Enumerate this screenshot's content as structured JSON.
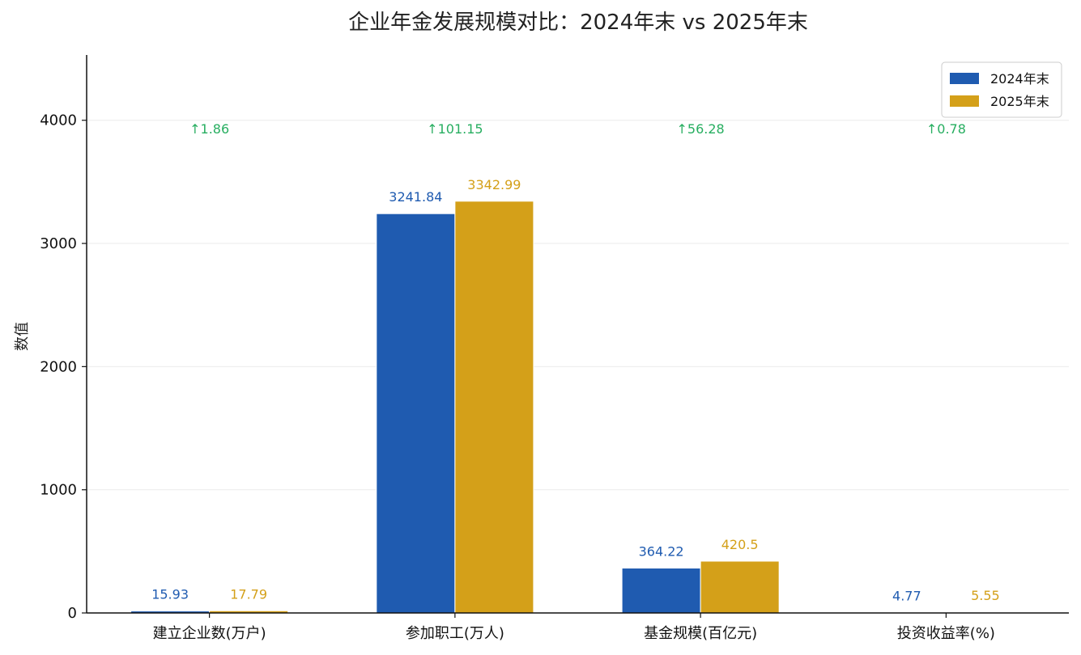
{
  "chart_data": {
    "type": "bar",
    "title": "企业年金发展规模对比：2024年末 vs 2025年末",
    "xlabel": "",
    "ylabel": "数值",
    "ylim": [
      0,
      4530
    ],
    "yticks": [
      "0",
      "1000",
      "2000",
      "3000",
      "4000"
    ],
    "ytick_values": [
      0,
      1000,
      2000,
      3000,
      4000
    ],
    "grid": "horizontal",
    "legend_position": "top-right",
    "categories": [
      "建立企业数(万户)",
      "参加职工(万人)",
      "基金规模(百亿元)",
      "投资收益率(%)"
    ],
    "series": [
      {
        "name": "2024年末",
        "color": "#1f5bb0",
        "values": [
          15.93,
          3241.84,
          364.22,
          4.77
        ],
        "labels": [
          "15.93",
          "3241.84",
          "364.22",
          "4.77"
        ]
      },
      {
        "name": "2025年末",
        "color": "#d4a019",
        "values": [
          17.79,
          3342.99,
          420.5,
          5.55
        ],
        "labels": [
          "17.79",
          "3342.99",
          "420.5",
          "5.55"
        ]
      }
    ],
    "deltas": [
      "↑1.86",
      "↑101.15",
      "↑56.28",
      "↑0.78"
    ],
    "delta_color": "#27ae60"
  }
}
